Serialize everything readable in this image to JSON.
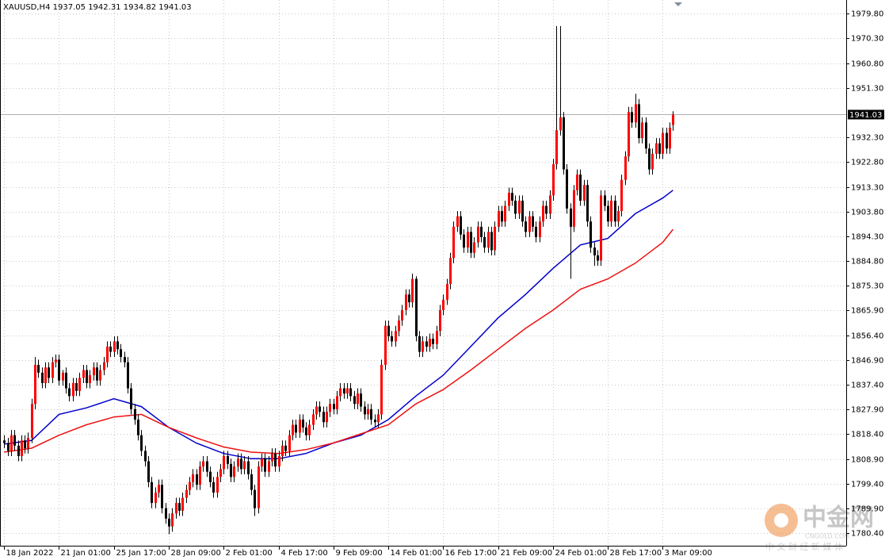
{
  "chart_data": {
    "type": "candlestick",
    "title": "XAUUSD,H4",
    "open": [
      1816,
      1815,
      1812,
      1818,
      1814,
      1810,
      1816,
      1813,
      1817,
      1830,
      1845,
      1842,
      1838,
      1844,
      1840,
      1846,
      1847,
      1839,
      1842,
      1836,
      1833,
      1838,
      1835,
      1840,
      1843,
      1838,
      1841,
      1844,
      1839,
      1843,
      1846,
      1852,
      1850,
      1854,
      1851,
      1848,
      1846,
      1836,
      1828,
      1824,
      1818,
      1812,
      1808,
      1800,
      1792,
      1796,
      1799,
      1790,
      1786,
      1783,
      1788,
      1792,
      1789,
      1794,
      1797,
      1800,
      1803,
      1799,
      1806,
      1808,
      1804,
      1800,
      1796,
      1802,
      1805,
      1810,
      1807,
      1802,
      1806,
      1809,
      1805,
      1808,
      1803,
      1797,
      1790,
      1806,
      1809,
      1804,
      1808,
      1811,
      1806,
      1810,
      1814,
      1812,
      1818,
      1822,
      1819,
      1824,
      1821,
      1818,
      1822,
      1826,
      1829,
      1827,
      1823,
      1827,
      1830,
      1828,
      1833,
      1836,
      1834,
      1836,
      1833,
      1830,
      1834,
      1829,
      1826,
      1828,
      1824,
      1823,
      1826,
      1845,
      1860,
      1856,
      1854,
      1858,
      1862,
      1866,
      1872,
      1869,
      1878,
      1856,
      1850,
      1854,
      1852,
      1855,
      1853,
      1858,
      1866,
      1870,
      1876,
      1886,
      1898,
      1902,
      1895,
      1890,
      1896,
      1888,
      1892,
      1898,
      1894,
      1890,
      1896,
      1889,
      1898,
      1904,
      1900,
      1906,
      1911,
      1908,
      1903,
      1908,
      1900,
      1896,
      1902,
      1898,
      1894,
      1900,
      1906,
      1903,
      1910,
      1922,
      1935,
      1940,
      1920,
      1905,
      1898,
      1912,
      1918,
      1908,
      1914,
      1900,
      1890,
      1887,
      1885,
      1910,
      1906,
      1900,
      1908,
      1900,
      1904,
      1916,
      1925,
      1942,
      1938,
      1945,
      1932,
      1938,
      1928,
      1920,
      1926,
      1930,
      1926,
      1934,
      1928,
      1937.05
    ],
    "high": [
      1818,
      1817,
      1820,
      1820,
      1816,
      1818,
      1818,
      1819,
      1832,
      1848,
      1847,
      1844,
      1846,
      1846,
      1848,
      1849,
      1849,
      1843,
      1844,
      1838,
      1840,
      1840,
      1842,
      1845,
      1845,
      1843,
      1846,
      1846,
      1845,
      1848,
      1854,
      1854,
      1856,
      1856,
      1853,
      1850,
      1848,
      1838,
      1830,
      1826,
      1820,
      1814,
      1810,
      1802,
      1798,
      1801,
      1801,
      1792,
      1788,
      1790,
      1794,
      1794,
      1796,
      1799,
      1802,
      1805,
      1805,
      1808,
      1810,
      1810,
      1806,
      1802,
      1804,
      1807,
      1812,
      1812,
      1809,
      1808,
      1811,
      1811,
      1810,
      1810,
      1805,
      1799,
      1808,
      1811,
      1811,
      1810,
      1813,
      1813,
      1812,
      1816,
      1816,
      1820,
      1824,
      1824,
      1826,
      1826,
      1823,
      1824,
      1828,
      1831,
      1831,
      1829,
      1829,
      1832,
      1832,
      1835,
      1838,
      1838,
      1838,
      1838,
      1835,
      1836,
      1836,
      1831,
      1830,
      1830,
      1826,
      1828,
      1847,
      1862,
      1862,
      1858,
      1860,
      1864,
      1868,
      1874,
      1874,
      1880,
      1879,
      1858,
      1856,
      1856,
      1857,
      1857,
      1860,
      1868,
      1872,
      1878,
      1888,
      1900,
      1904,
      1904,
      1897,
      1898,
      1898,
      1894,
      1900,
      1900,
      1896,
      1898,
      1898,
      1900,
      1906,
      1906,
      1908,
      1913,
      1913,
      1910,
      1910,
      1910,
      1902,
      1904,
      1904,
      1900,
      1902,
      1908,
      1908,
      1912,
      1924,
      1975,
      1975,
      1942,
      1922,
      1907,
      1914,
      1920,
      1920,
      1916,
      1916,
      1902,
      1892,
      1889,
      1912,
      1912,
      1908,
      1910,
      1910,
      1906,
      1918,
      1927,
      1944,
      1944,
      1949,
      1947,
      1940,
      1940,
      1930,
      1928,
      1932,
      1932,
      1936,
      1936,
      1938,
      1942.31
    ],
    "low": [
      1813,
      1810,
      1810,
      1812,
      1808,
      1808,
      1811,
      1811,
      1815,
      1828,
      1840,
      1836,
      1836,
      1838,
      1838,
      1844,
      1837,
      1837,
      1834,
      1831,
      1831,
      1833,
      1833,
      1838,
      1836,
      1836,
      1839,
      1837,
      1837,
      1841,
      1844,
      1848,
      1848,
      1849,
      1846,
      1844,
      1834,
      1826,
      1822,
      1816,
      1810,
      1806,
      1798,
      1790,
      1790,
      1794,
      1788,
      1784,
      1780,
      1781,
      1786,
      1787,
      1787,
      1792,
      1795,
      1798,
      1797,
      1797,
      1804,
      1802,
      1798,
      1794,
      1794,
      1800,
      1803,
      1805,
      1800,
      1800,
      1804,
      1803,
      1803,
      1801,
      1795,
      1787,
      1788,
      1804,
      1802,
      1802,
      1806,
      1804,
      1804,
      1808,
      1810,
      1810,
      1816,
      1817,
      1817,
      1819,
      1816,
      1816,
      1820,
      1824,
      1825,
      1821,
      1821,
      1825,
      1826,
      1826,
      1831,
      1832,
      1832,
      1831,
      1828,
      1828,
      1827,
      1824,
      1824,
      1822,
      1821,
      1821,
      1824,
      1843,
      1854,
      1852,
      1852,
      1856,
      1860,
      1864,
      1867,
      1867,
      1854,
      1848,
      1848,
      1850,
      1850,
      1851,
      1851,
      1856,
      1864,
      1868,
      1874,
      1884,
      1896,
      1893,
      1888,
      1888,
      1886,
      1886,
      1890,
      1892,
      1888,
      1888,
      1887,
      1887,
      1896,
      1898,
      1898,
      1904,
      1906,
      1901,
      1901,
      1898,
      1894,
      1894,
      1896,
      1892,
      1892,
      1898,
      1901,
      1901,
      1908,
      1920,
      1933,
      1918,
      1903,
      1878,
      1896,
      1910,
      1906,
      1906,
      1898,
      1888,
      1883,
      1883,
      1883,
      1904,
      1898,
      1898,
      1898,
      1898,
      1902,
      1914,
      1923,
      1936,
      1936,
      1930,
      1930,
      1926,
      1918,
      1918,
      1924,
      1924,
      1924,
      1926,
      1926,
      1934.82
    ],
    "close": [
      1815,
      1812,
      1818,
      1814,
      1810,
      1816,
      1813,
      1817,
      1830,
      1845,
      1842,
      1838,
      1844,
      1840,
      1846,
      1847,
      1839,
      1842,
      1836,
      1833,
      1838,
      1835,
      1840,
      1843,
      1838,
      1841,
      1844,
      1839,
      1843,
      1846,
      1852,
      1850,
      1854,
      1851,
      1848,
      1846,
      1836,
      1828,
      1824,
      1818,
      1812,
      1808,
      1800,
      1792,
      1796,
      1799,
      1790,
      1786,
      1783,
      1788,
      1792,
      1789,
      1794,
      1797,
      1800,
      1803,
      1799,
      1806,
      1808,
      1804,
      1800,
      1796,
      1802,
      1805,
      1810,
      1807,
      1802,
      1806,
      1809,
      1805,
      1808,
      1803,
      1797,
      1790,
      1806,
      1809,
      1804,
      1808,
      1811,
      1806,
      1810,
      1814,
      1812,
      1818,
      1822,
      1819,
      1824,
      1821,
      1818,
      1822,
      1826,
      1829,
      1827,
      1823,
      1827,
      1830,
      1828,
      1833,
      1836,
      1834,
      1836,
      1833,
      1830,
      1834,
      1829,
      1826,
      1828,
      1824,
      1823,
      1826,
      1845,
      1860,
      1856,
      1854,
      1858,
      1862,
      1866,
      1872,
      1869,
      1878,
      1856,
      1850,
      1854,
      1852,
      1855,
      1853,
      1858,
      1866,
      1870,
      1876,
      1886,
      1898,
      1902,
      1895,
      1890,
      1896,
      1888,
      1892,
      1898,
      1894,
      1890,
      1896,
      1889,
      1898,
      1904,
      1900,
      1906,
      1911,
      1908,
      1903,
      1908,
      1900,
      1896,
      1902,
      1898,
      1894,
      1900,
      1906,
      1903,
      1910,
      1922,
      1935,
      1940,
      1920,
      1905,
      1898,
      1912,
      1918,
      1908,
      1914,
      1900,
      1890,
      1887,
      1885,
      1910,
      1906,
      1900,
      1908,
      1900,
      1904,
      1916,
      1925,
      1942,
      1938,
      1945,
      1932,
      1938,
      1928,
      1920,
      1926,
      1930,
      1926,
      1934,
      1928,
      1936,
      1941.03
    ],
    "up_color": "#ff0000",
    "down_color": "#000000",
    "wick_color": "#000000",
    "overlays": [
      {
        "color": "#0000cc",
        "x": [
          0,
          8,
          16,
          24,
          32,
          40,
          48,
          56,
          64,
          72,
          80,
          88,
          96,
          104,
          112,
          120,
          128,
          136,
          144,
          152,
          160,
          168,
          176,
          184,
          192,
          195
        ],
        "values": [
          1814.6,
          1816,
          1826,
          1828.5,
          1832,
          1829,
          1821,
          1815,
          1811,
          1809,
          1809,
          1811,
          1815,
          1818,
          1824,
          1833,
          1841,
          1852,
          1863,
          1872,
          1882,
          1891,
          1893.5,
          1903,
          1909,
          1912
        ]
      },
      {
        "color": "#ee1111",
        "x": [
          0,
          8,
          16,
          24,
          32,
          40,
          48,
          56,
          64,
          72,
          80,
          88,
          96,
          104,
          112,
          120,
          128,
          136,
          144,
          152,
          160,
          168,
          176,
          184,
          192,
          195
        ],
        "values": [
          1811.5,
          1813,
          1818,
          1822,
          1825,
          1826,
          1821,
          1817,
          1813.5,
          1811.5,
          1811,
          1812.5,
          1815,
          1818.5,
          1822,
          1830,
          1835.5,
          1843,
          1851,
          1859,
          1866,
          1874,
          1878,
          1884,
          1892,
          1897
        ]
      }
    ],
    "xlim": [
      -1.2,
      245.5
    ],
    "ylim": [
      1775.6,
      1985.0
    ],
    "xticks": [
      {
        "value": 0,
        "label": "18 Jan 2022"
      },
      {
        "value": 16,
        "label": "21 Jan 01:00"
      },
      {
        "value": 32,
        "label": "25 Jan 17:00"
      },
      {
        "value": 48,
        "label": "28 Jan 09:00"
      },
      {
        "value": 64,
        "label": "2 Feb 01:00"
      },
      {
        "value": 80,
        "label": "4 Feb 17:00"
      },
      {
        "value": 96,
        "label": "9 Feb 09:00"
      },
      {
        "value": 112,
        "label": "14 Feb 01:00"
      },
      {
        "value": 128,
        "label": "16 Feb 17:00"
      },
      {
        "value": 144,
        "label": "21 Feb 09:00"
      },
      {
        "value": 160,
        "label": "24 Feb 01:00"
      },
      {
        "value": 176,
        "label": "28 Feb 17:00"
      },
      {
        "value": 192,
        "label": "3 Mar 09:00"
      }
    ],
    "yticks": [
      {
        "value": 1979.8,
        "label": "1979.80"
      },
      {
        "value": 1970.3,
        "label": "1970.30"
      },
      {
        "value": 1960.8,
        "label": "1960.80"
      },
      {
        "value": 1951.3,
        "label": "1951.30"
      },
      {
        "value": 1932.3,
        "label": "1932.30"
      },
      {
        "value": 1922.8,
        "label": "1922.80"
      },
      {
        "value": 1913.3,
        "label": "1913.30"
      },
      {
        "value": 1903.8,
        "label": "1903.80"
      },
      {
        "value": 1894.3,
        "label": "1894.30"
      },
      {
        "value": 1884.8,
        "label": "1884.80"
      },
      {
        "value": 1875.3,
        "label": "1875.30"
      },
      {
        "value": 1865.9,
        "label": "1865.90"
      },
      {
        "value": 1856.4,
        "label": "1856.40"
      },
      {
        "value": 1846.9,
        "label": "1846.90"
      },
      {
        "value": 1837.4,
        "label": "1837.40"
      },
      {
        "value": 1827.9,
        "label": "1827.90"
      },
      {
        "value": 1818.4,
        "label": "1818.40"
      },
      {
        "value": 1808.9,
        "label": "1808.90"
      },
      {
        "value": 1799.4,
        "label": "1799.40"
      },
      {
        "value": 1789.9,
        "label": "1789.90"
      },
      {
        "value": 1780.4,
        "label": "1780.40"
      }
    ],
    "grid": true,
    "watermark": {
      "logo": "中金网",
      "site": "CNGOLD.COM",
      "tagline": "中 文 财 经 新 媒 体"
    }
  }
}
